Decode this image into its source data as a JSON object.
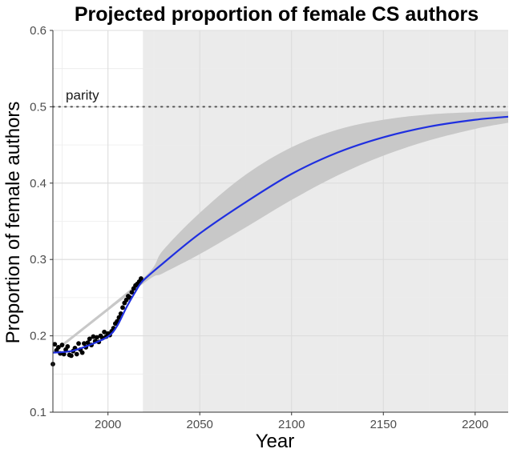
{
  "chart_data": {
    "type": "line",
    "title": "Projected proportion of female CS authors",
    "xlabel": "Year",
    "ylabel": "Proportion of female authors",
    "xlim": [
      1970,
      2218
    ],
    "ylim": [
      0.1,
      0.6
    ],
    "x_ticks": [
      2000,
      2050,
      2100,
      2150,
      2200
    ],
    "x_tick_labels": [
      "2000",
      "2050",
      "2100",
      "2150",
      "2200"
    ],
    "y_ticks": [
      0.1,
      0.2,
      0.3,
      0.4,
      0.5,
      0.6
    ],
    "y_tick_labels": [
      "0.1",
      "0.2",
      "0.3",
      "0.4",
      "0.5",
      "0.6"
    ],
    "grid": true,
    "projection_start_year": 2019,
    "reference_line": {
      "label": "parity",
      "y": 0.5,
      "style": "dotted"
    },
    "observed_points": {
      "x": [
        1970,
        1971,
        1972,
        1973,
        1974,
        1975,
        1976,
        1977,
        1978,
        1979,
        1980,
        1981,
        1982,
        1983,
        1984,
        1985,
        1986,
        1987,
        1988,
        1989,
        1990,
        1991,
        1992,
        1993,
        1994,
        1995,
        1996,
        1997,
        1998,
        1999,
        2000,
        2001,
        2002,
        2003,
        2004,
        2005,
        2006,
        2007,
        2008,
        2009,
        2010,
        2011,
        2012,
        2013,
        2014,
        2015,
        2016,
        2017,
        2018
      ],
      "y": [
        0.163,
        0.189,
        0.181,
        0.185,
        0.177,
        0.188,
        0.176,
        0.182,
        0.186,
        0.175,
        0.174,
        0.18,
        0.184,
        0.176,
        0.19,
        0.182,
        0.178,
        0.19,
        0.185,
        0.191,
        0.196,
        0.188,
        0.199,
        0.193,
        0.198,
        0.192,
        0.2,
        0.197,
        0.205,
        0.199,
        0.203,
        0.201,
        0.206,
        0.21,
        0.216,
        0.219,
        0.224,
        0.229,
        0.237,
        0.243,
        0.247,
        0.252,
        0.25,
        0.257,
        0.262,
        0.266,
        0.268,
        0.271,
        0.275
      ]
    },
    "series": [
      {
        "x": [
          1970,
          1980,
          1990,
          2000,
          2005,
          2010,
          2015,
          2019,
          2030,
          2050,
          2075,
          2100,
          2125,
          2150,
          2175,
          2200,
          2218
        ],
        "values": [
          0.178,
          0.18,
          0.188,
          0.199,
          0.213,
          0.237,
          0.258,
          0.272,
          0.295,
          0.334,
          0.375,
          0.412,
          0.44,
          0.46,
          0.474,
          0.483,
          0.487
        ]
      }
    ],
    "confidence_band": {
      "x": [
        1970,
        2019,
        2030,
        2050,
        2075,
        2100,
        2125,
        2150,
        2175,
        2200,
        2218
      ],
      "upper": [
        0.18,
        0.275,
        0.312,
        0.361,
        0.411,
        0.447,
        0.47,
        0.483,
        0.49,
        0.493,
        0.494
      ],
      "lower": [
        0.176,
        0.268,
        0.282,
        0.307,
        0.342,
        0.378,
        0.41,
        0.436,
        0.456,
        0.471,
        0.479
      ]
    },
    "colors": {
      "line": "#1f2fe0",
      "band": "#c8c8c8",
      "projection_background": "#ebebeb",
      "points": "#000000",
      "reference_line": "#555555",
      "grid": "#dcdcdc"
    }
  }
}
